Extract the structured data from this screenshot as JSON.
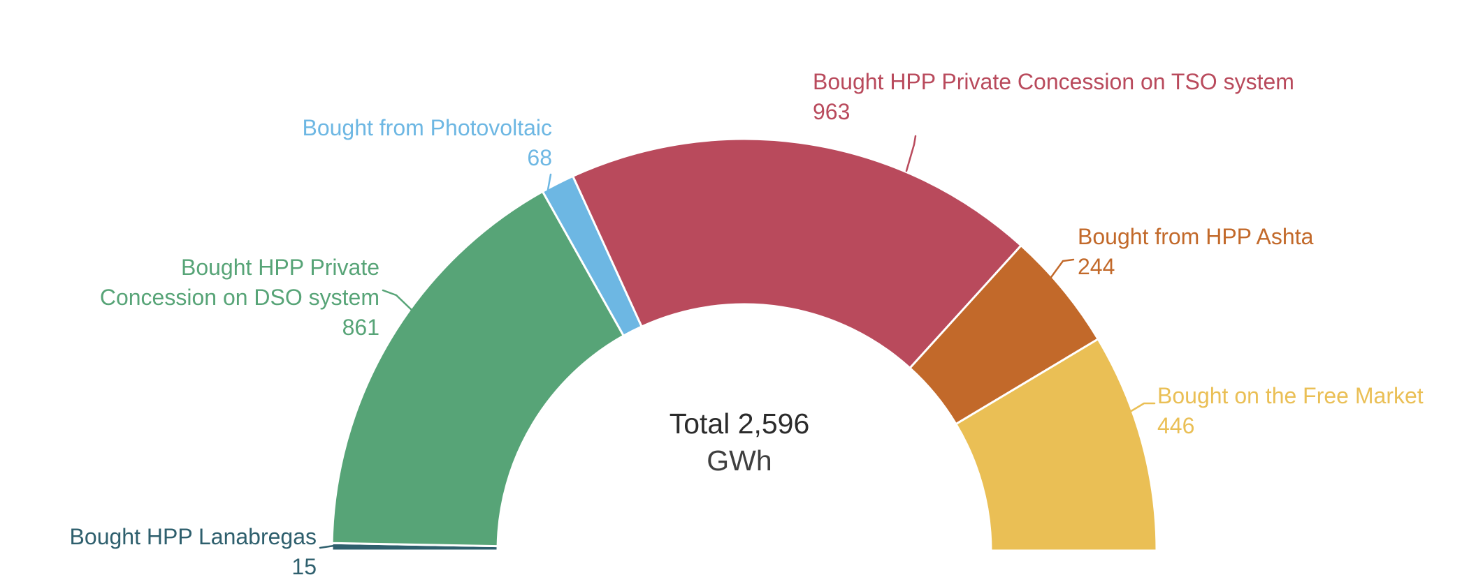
{
  "chart_data": {
    "type": "pie",
    "variant": "half-donut",
    "title": "",
    "legend_position": "outside-labels",
    "center_label": {
      "line1": "Total 2,596",
      "line2": "GWh"
    },
    "total": 2596,
    "unit": "GWh",
    "slices": [
      {
        "name": "Bought HPP Lanabregas",
        "value": 15,
        "color": "#2e5f6d"
      },
      {
        "name": "Bought HPP Private Concession on DSO system",
        "value": 861,
        "color": "#57a477"
      },
      {
        "name": "Bought from Photovoltaic",
        "value": 68,
        "color": "#6db7e3"
      },
      {
        "name": "Bought HPP Private Concession on TSO system",
        "value": 963,
        "color": "#b94a5c"
      },
      {
        "name": "Bought from HPP Ashta",
        "value": 244,
        "color": "#c2692a"
      },
      {
        "name": "Bought on the Free Market",
        "value": 446,
        "color": "#eabf55"
      }
    ]
  }
}
